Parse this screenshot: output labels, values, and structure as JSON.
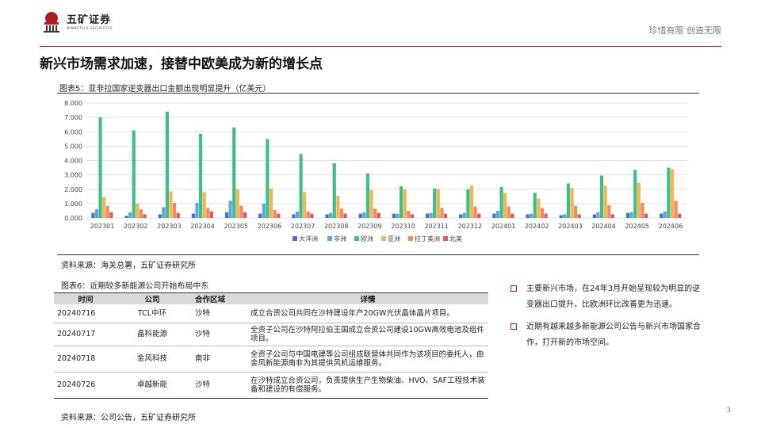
{
  "header": {
    "logo_cn": "五矿证券",
    "logo_en": "MINMETALS SECURITIES",
    "slogan": "珍惜有限 创造无限"
  },
  "colors": {
    "brand_red": "#b31c1c",
    "oceania": "#4472c4",
    "africa": "#5aa9e6",
    "europe": "#3dbf85",
    "asia": "#f5b556",
    "latam": "#f28c5a",
    "north_america": "#e95562"
  },
  "page_title": "新兴市场需求加速，接替中欧美成为新的增长点",
  "figure1": {
    "title": "图表5：亚非拉国家逆变器出口金额出现明显提升（亿美元）",
    "source": "资料来源：海关总署，五矿证券研究所"
  },
  "chart_data": {
    "type": "bar",
    "title": "图表5：亚非拉国家逆变器出口金额出现明显提升（亿美元）",
    "categories": [
      "202301",
      "202302",
      "202303",
      "202304",
      "202305",
      "202306",
      "202307",
      "202308",
      "202309",
      "202310",
      "202311",
      "202312",
      "202401",
      "202402",
      "202403",
      "202404",
      "202405",
      "202406"
    ],
    "ylim": [
      0,
      8
    ],
    "yticks": [
      "0.000",
      "1.000",
      "2.000",
      "3.000",
      "4.000",
      "5.000",
      "6.000",
      "7.000",
      "8.000"
    ],
    "grid": true,
    "legend_position": "bottom",
    "series": [
      {
        "name": "大洋洲",
        "color": "#4472c4",
        "values": [
          0.35,
          0.15,
          0.25,
          0.3,
          0.4,
          0.3,
          0.25,
          0.25,
          0.3,
          0.3,
          0.3,
          0.25,
          0.3,
          0.25,
          0.2,
          0.25,
          0.35,
          0.3
        ]
      },
      {
        "name": "非洲",
        "color": "#5aa9e6",
        "values": [
          0.6,
          0.4,
          0.75,
          1.05,
          1.2,
          1.0,
          0.45,
          0.35,
          0.4,
          0.3,
          0.35,
          0.35,
          0.5,
          0.3,
          0.25,
          0.4,
          0.4,
          0.45
        ]
      },
      {
        "name": "欧洲",
        "color": "#3dbf85",
        "values": [
          7.0,
          6.1,
          7.4,
          5.85,
          6.3,
          5.5,
          4.45,
          3.8,
          3.1,
          2.2,
          2.05,
          2.0,
          2.15,
          1.75,
          2.4,
          2.95,
          3.35,
          3.5
        ]
      },
      {
        "name": "亚洲",
        "color": "#f5b556",
        "values": [
          1.45,
          1.0,
          1.85,
          1.8,
          2.0,
          2.05,
          1.8,
          1.55,
          1.95,
          2.0,
          2.0,
          2.25,
          1.75,
          1.35,
          2.1,
          2.25,
          2.45,
          3.4
        ]
      },
      {
        "name": "拉丁美洲",
        "color": "#f28c5a",
        "values": [
          0.85,
          0.6,
          1.05,
          0.7,
          0.85,
          0.55,
          0.45,
          0.65,
          0.65,
          0.5,
          0.7,
          0.8,
          0.8,
          0.7,
          0.85,
          0.9,
          1.05,
          1.2
        ]
      },
      {
        "name": "北美",
        "color": "#e95562",
        "values": [
          0.4,
          0.25,
          0.35,
          0.45,
          0.4,
          0.3,
          0.3,
          0.3,
          0.35,
          0.25,
          0.3,
          0.3,
          0.3,
          0.3,
          0.25,
          0.25,
          0.3,
          0.3
        ]
      }
    ]
  },
  "figure2": {
    "title": "图表6：近期较多新能源公司开始布局中东",
    "source": "资料来源：公司公告，五矿证券研究所",
    "headers": {
      "time": "时间",
      "company": "公司",
      "region": "合作区域",
      "detail": "详情"
    },
    "rows": [
      {
        "time": "20240716",
        "company": "TCL中环",
        "region": "沙特",
        "detail": "成立合资公司共同在沙特建设年产20GW光伏晶体晶片项目。"
      },
      {
        "time": "20240717",
        "company": "晶科能源",
        "region": "沙特",
        "detail": "全资子公司在沙特阿拉伯王国成立合资公司建设10GW高效电池及组件项目。"
      },
      {
        "time": "20240718",
        "company": "金风科技",
        "region": "南非",
        "detail": "全资子公司与中国电建等公司组成联营体共同作为该项目的委托人，由金风新能源南非为其提供风机运维服务。"
      },
      {
        "time": "20240726",
        "company": "卓越新能",
        "region": "沙特",
        "detail": "在沙特成立合资公司，负责提供生产生物柴油、HVO、SAF工程技术装备和建设的有偿服务。"
      }
    ]
  },
  "bullets": [
    "主要新兴市场，在24年3月开始呈现较为明显的逆变器出口提升，比欧洲环比改善更为迅速。",
    "近期有越来越多新能源公司公告与新兴市场国家合作，打开新的市场空间。"
  ],
  "page_number": "3"
}
